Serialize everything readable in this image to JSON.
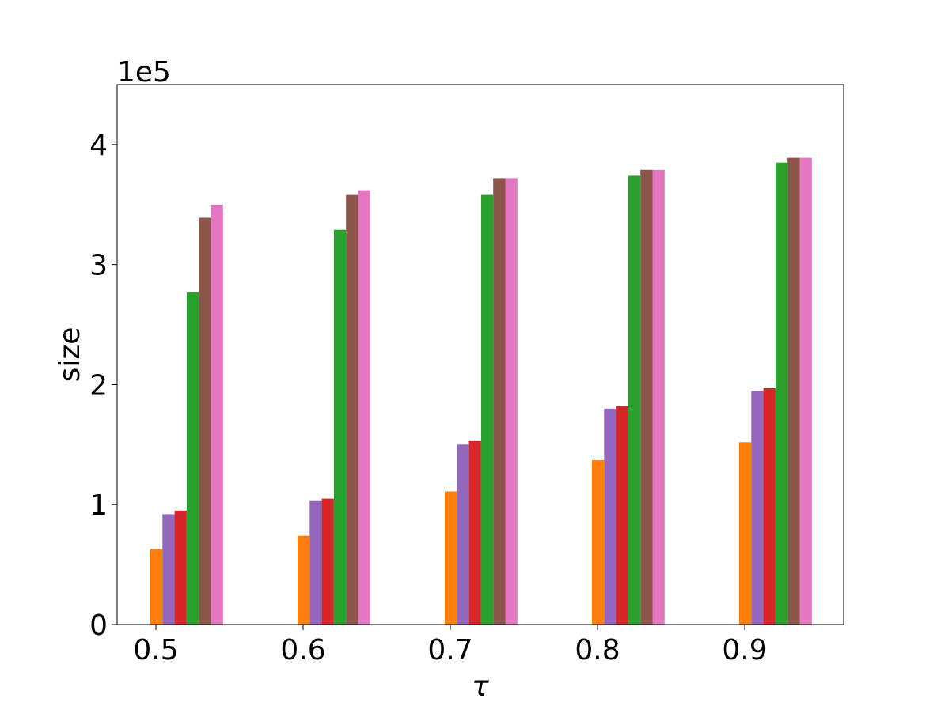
{
  "chart_data": {
    "type": "bar",
    "xlabel": "τ",
    "ylabel": "size",
    "y_offset_label": "1e5",
    "y_scale": 100000,
    "categories": [
      "0.5",
      "0.6",
      "0.7",
      "0.8",
      "0.9"
    ],
    "ylim": [
      0,
      4.5
    ],
    "yticks": [
      0,
      1,
      2,
      3,
      4
    ],
    "ytick_labels": [
      "0",
      "1",
      "2",
      "3",
      "4"
    ],
    "legend": "none",
    "grid": false,
    "series": [
      {
        "color": "#ff7f0e",
        "values": [
          0.63,
          0.74,
          1.11,
          1.37,
          1.52
        ]
      },
      {
        "color": "#9467bd",
        "values": [
          0.92,
          1.03,
          1.5,
          1.8,
          1.95
        ]
      },
      {
        "color": "#d62728",
        "values": [
          0.95,
          1.05,
          1.53,
          1.82,
          1.97
        ]
      },
      {
        "color": "#2ca02c",
        "values": [
          2.77,
          3.29,
          3.58,
          3.74,
          3.85
        ]
      },
      {
        "color": "#8c564b",
        "values": [
          3.39,
          3.58,
          3.72,
          3.79,
          3.89
        ]
      },
      {
        "color": "#e377c2",
        "values": [
          3.5,
          3.62,
          3.72,
          3.79,
          3.89
        ]
      }
    ]
  }
}
